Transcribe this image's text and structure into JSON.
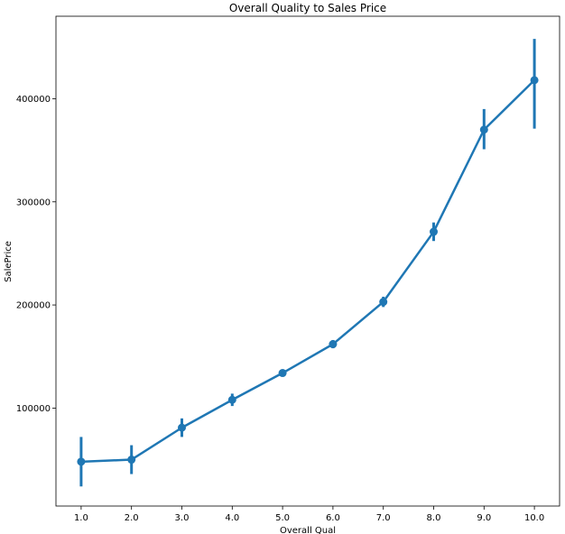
{
  "chart_data": {
    "type": "line",
    "title": "Overall Quality to Sales Price",
    "xlabel": "Overall Qual",
    "ylabel": "SalePrice",
    "categories": [
      "1.0",
      "2.0",
      "3.0",
      "4.0",
      "5.0",
      "6.0",
      "7.0",
      "8.0",
      "9.0",
      "10.0"
    ],
    "series": [
      {
        "values": [
          48000,
          50000,
          81000,
          108000,
          134000,
          162000,
          203000,
          271000,
          370000,
          418000
        ],
        "ci_low": [
          24000,
          36000,
          72000,
          102000,
          132000,
          158000,
          198000,
          262000,
          351000,
          371000
        ],
        "ci_high": [
          72000,
          64000,
          90000,
          114000,
          137000,
          166000,
          208000,
          280000,
          390000,
          458000
        ]
      }
    ],
    "yticks": [
      100000,
      200000,
      300000,
      400000
    ],
    "ylim": [
      5000,
      480000
    ],
    "grid": false,
    "color": "#1f77b4"
  }
}
